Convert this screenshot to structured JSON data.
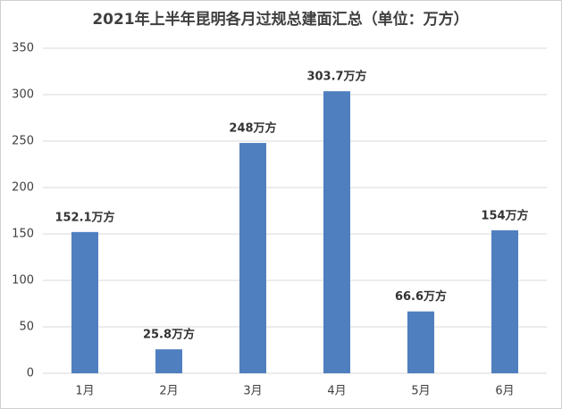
{
  "chart_data": {
    "type": "bar",
    "title": "2021年上半年昆明各月过规总建面汇总（单位：万方）",
    "categories": [
      "1月",
      "2月",
      "3月",
      "4月",
      "5月",
      "6月"
    ],
    "values": [
      152.1,
      25.8,
      248,
      303.7,
      66.6,
      154
    ],
    "value_labels": [
      "152.1万方",
      "25.8万方",
      "248万方",
      "303.7万方",
      "66.6万方",
      "154万方"
    ],
    "color": "#4f7fbf",
    "ylim": [
      0,
      350
    ],
    "yticks": [
      0,
      50,
      100,
      150,
      200,
      250,
      300,
      350
    ],
    "grid": true
  }
}
